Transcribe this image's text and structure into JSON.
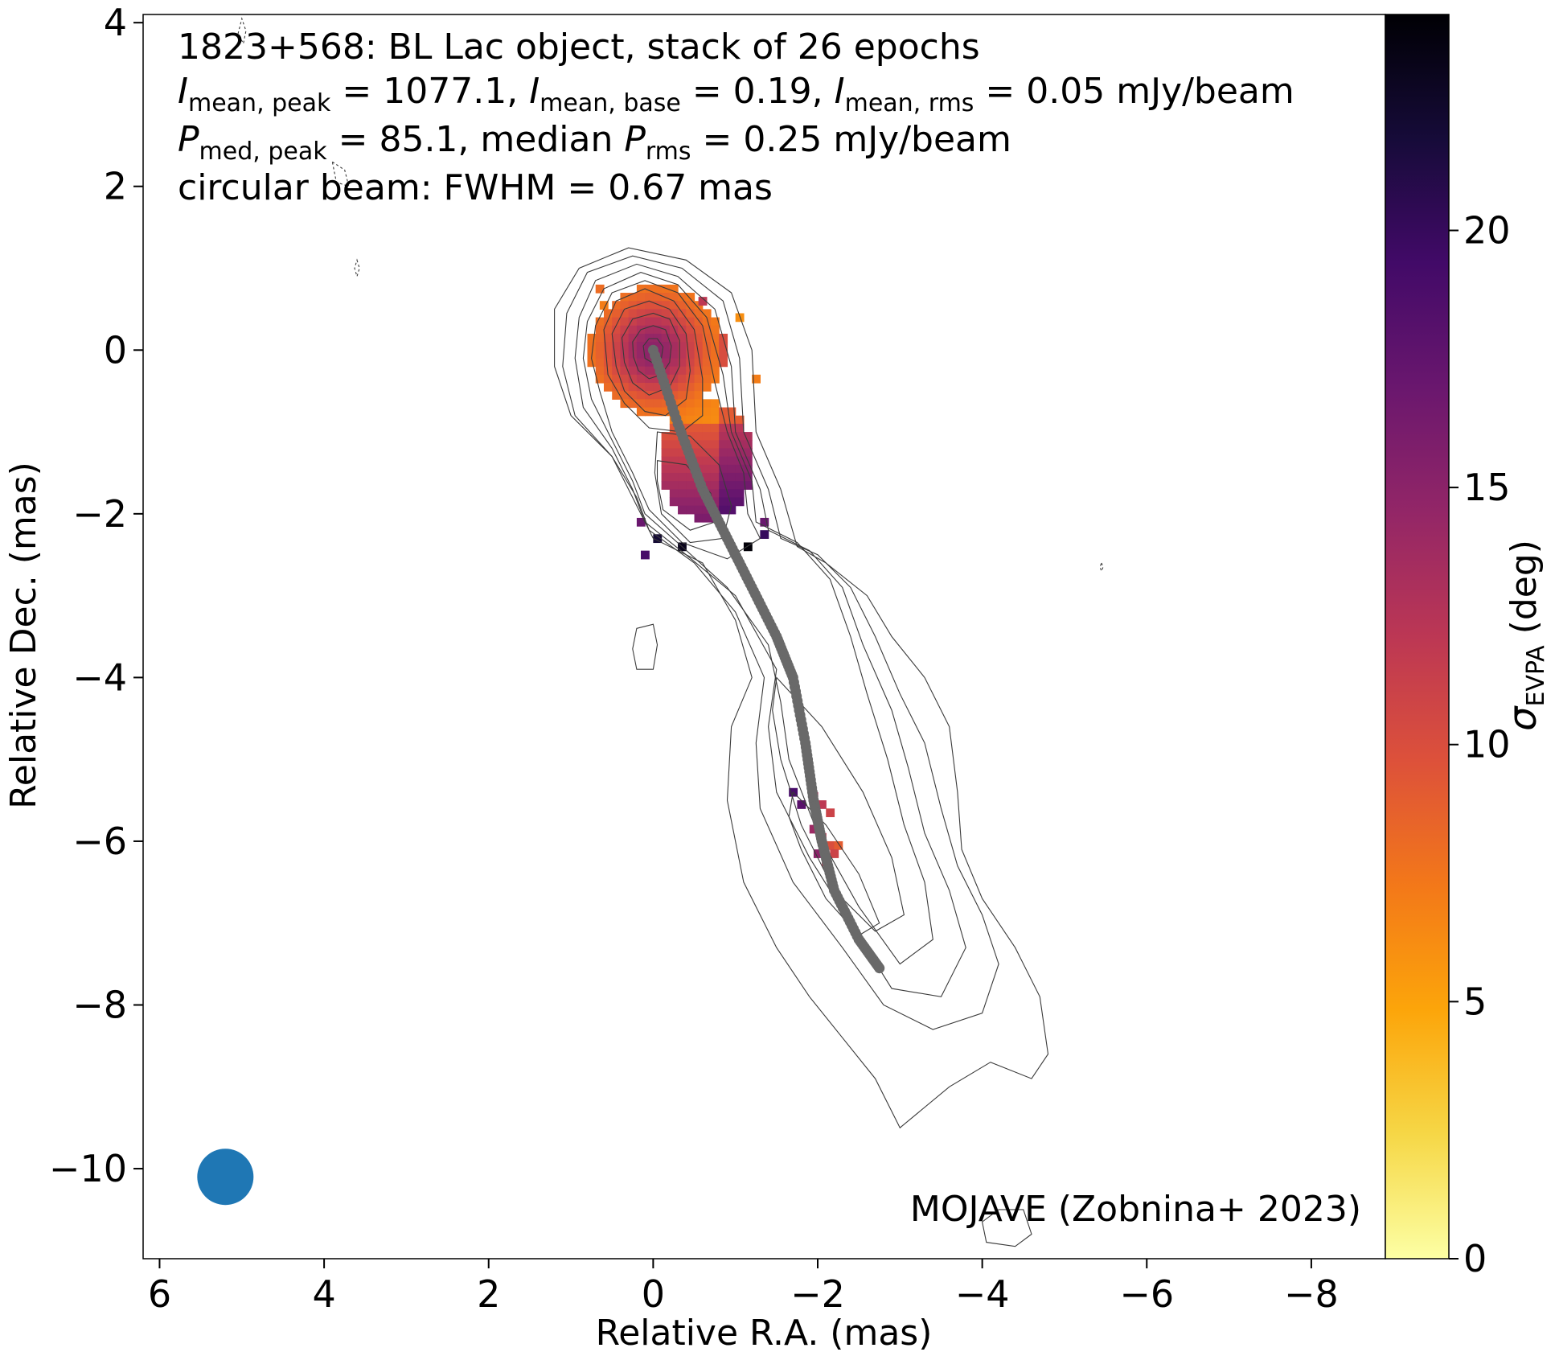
{
  "chart_data": {
    "type": "heatmap",
    "title_lines": {
      "line1": "1823+568: BL Lac object, stack of 26 epochs",
      "line2": {
        "I": "I",
        "sub_peak": "mean, peak",
        "peak_value": " = 1077.1, ",
        "sub_base": "mean, base",
        "base_value": " = 0.19, ",
        "sub_rms": "mean, rms",
        "rms_value": " = 0.05 mJy/beam"
      },
      "line3": {
        "P": "P",
        "sub_peak": "med, peak",
        "peak_value": " = 85.1, median ",
        "sub_rms": "rms",
        "rms_value": " = 0.25 mJy/beam"
      },
      "line4": "circular beam: FWHM = 0.67 mas"
    },
    "xlabel": "Relative R.A. (mas)",
    "ylabel": "Relative Dec. (mas)",
    "xlim": [
      6.2,
      -8.9
    ],
    "ylim": [
      -11.1,
      4.1
    ],
    "xticks": [
      6,
      4,
      2,
      0,
      -2,
      -4,
      -6,
      -8
    ],
    "yticks": [
      4,
      2,
      0,
      -2,
      -4,
      -6,
      -8,
      -10
    ],
    "xtick_labels": [
      "6",
      "4",
      "2",
      "0",
      "−2",
      "−4",
      "−6",
      "−8"
    ],
    "ytick_labels": [
      "4",
      "2",
      "0",
      "−2",
      "−4",
      "−6",
      "−8",
      "−10"
    ],
    "colorbar": {
      "label_symbol": "σ",
      "label_sub": "EVPA",
      "label_unit": " (deg)",
      "range": [
        0,
        24.2
      ],
      "ticks": [
        0,
        5,
        10,
        15,
        20
      ],
      "tick_labels": [
        "0",
        "5",
        "10",
        "15",
        "20"
      ],
      "colormap": "inferno_r"
    },
    "credit": "MOJAVE (Zobnina+ 2023)",
    "beam": {
      "center": [
        5.2,
        -10.1
      ],
      "fwhm": 0.67,
      "color": "#1f77b4"
    },
    "ridgeline": {
      "color": "#696969",
      "points": [
        [
          0,
          0
        ],
        [
          -0.3,
          -0.9
        ],
        [
          -0.6,
          -1.7
        ],
        [
          -0.9,
          -2.3
        ],
        [
          -1.2,
          -2.9
        ],
        [
          -1.5,
          -3.5
        ],
        [
          -1.7,
          -4.0
        ],
        [
          -1.85,
          -4.8
        ],
        [
          -1.95,
          -5.5
        ],
        [
          -2.05,
          -6.0
        ],
        [
          -2.2,
          -6.6
        ],
        [
          -2.5,
          -7.2
        ],
        [
          -2.75,
          -7.55
        ]
      ]
    },
    "contours": [
      {
        "points": [
          [
            1.2,
            0.5
          ],
          [
            0.9,
            1.0
          ],
          [
            0.3,
            1.25
          ],
          [
            -0.4,
            1.1
          ],
          [
            -0.95,
            0.7
          ],
          [
            -1.2,
            0.0
          ],
          [
            -1.25,
            -1.0
          ],
          [
            -1.55,
            -1.7
          ],
          [
            -1.75,
            -2.4
          ],
          [
            -2.1,
            -2.6
          ],
          [
            -2.6,
            -3.0
          ],
          [
            -2.9,
            -3.5
          ],
          [
            -3.3,
            -4.0
          ],
          [
            -3.6,
            -4.6
          ],
          [
            -3.7,
            -5.4
          ],
          [
            -3.75,
            -6.1
          ],
          [
            -4.0,
            -6.7
          ],
          [
            -4.4,
            -7.3
          ],
          [
            -4.7,
            -7.9
          ],
          [
            -4.8,
            -8.6
          ],
          [
            -4.6,
            -8.9
          ],
          [
            -4.1,
            -8.7
          ],
          [
            -3.6,
            -9.0
          ],
          [
            -3.0,
            -9.5
          ],
          [
            -2.7,
            -8.9
          ],
          [
            -2.3,
            -8.4
          ],
          [
            -1.9,
            -7.9
          ],
          [
            -1.5,
            -7.3
          ],
          [
            -1.1,
            -6.5
          ],
          [
            -0.9,
            -5.5
          ],
          [
            -0.95,
            -4.6
          ],
          [
            -1.2,
            -4.0
          ],
          [
            -1.0,
            -3.3
          ],
          [
            -0.6,
            -2.6
          ],
          [
            0.0,
            -2.3
          ],
          [
            0.2,
            -1.9
          ],
          [
            0.5,
            -1.3
          ],
          [
            1.0,
            -0.8
          ],
          [
            1.2,
            -0.2
          ]
        ]
      },
      {
        "points": [
          [
            1.05,
            0.45
          ],
          [
            0.8,
            0.95
          ],
          [
            0.25,
            1.15
          ],
          [
            -0.35,
            1.0
          ],
          [
            -0.85,
            0.6
          ],
          [
            -1.05,
            -0.1
          ],
          [
            -1.1,
            -1.0
          ],
          [
            -1.4,
            -1.7
          ],
          [
            -1.55,
            -2.3
          ],
          [
            -2.0,
            -2.5
          ],
          [
            -2.4,
            -2.9
          ],
          [
            -2.7,
            -3.5
          ],
          [
            -3.0,
            -4.2
          ],
          [
            -3.3,
            -4.8
          ],
          [
            -3.5,
            -5.6
          ],
          [
            -3.7,
            -6.3
          ],
          [
            -4.0,
            -6.9
          ],
          [
            -4.2,
            -7.5
          ],
          [
            -4.0,
            -8.1
          ],
          [
            -3.4,
            -8.3
          ],
          [
            -2.8,
            -8.0
          ],
          [
            -2.3,
            -7.3
          ],
          [
            -1.7,
            -6.5
          ],
          [
            -1.3,
            -5.6
          ],
          [
            -1.25,
            -4.8
          ],
          [
            -1.35,
            -4.0
          ],
          [
            -1.0,
            -3.2
          ],
          [
            -0.5,
            -2.6
          ],
          [
            0.05,
            -2.2
          ],
          [
            0.2,
            -1.8
          ],
          [
            0.5,
            -1.3
          ],
          [
            0.95,
            -0.8
          ],
          [
            1.1,
            -0.2
          ]
        ]
      },
      {
        "points": [
          [
            0.9,
            0.4
          ],
          [
            0.7,
            0.85
          ],
          [
            0.2,
            1.05
          ],
          [
            -0.3,
            0.9
          ],
          [
            -0.75,
            0.5
          ],
          [
            -0.95,
            -0.2
          ],
          [
            -1.0,
            -1.0
          ],
          [
            -1.3,
            -1.7
          ],
          [
            -1.4,
            -2.2
          ],
          [
            -1.9,
            -2.45
          ],
          [
            -2.3,
            -2.9
          ],
          [
            -2.55,
            -3.6
          ],
          [
            -2.9,
            -4.4
          ],
          [
            -3.1,
            -5.1
          ],
          [
            -3.3,
            -5.9
          ],
          [
            -3.6,
            -6.6
          ],
          [
            -3.8,
            -7.3
          ],
          [
            -3.5,
            -7.9
          ],
          [
            -2.9,
            -7.8
          ],
          [
            -2.4,
            -7.0
          ],
          [
            -1.9,
            -6.2
          ],
          [
            -1.5,
            -5.4
          ],
          [
            -1.4,
            -4.6
          ],
          [
            -1.5,
            -3.9
          ],
          [
            -1.0,
            -3.0
          ],
          [
            -0.4,
            -2.5
          ],
          [
            0.1,
            -2.1
          ],
          [
            0.25,
            -1.7
          ],
          [
            0.5,
            -1.2
          ],
          [
            0.85,
            -0.7
          ],
          [
            0.95,
            -0.1
          ]
        ]
      },
      {
        "points": [
          [
            0.8,
            0.35
          ],
          [
            0.6,
            0.75
          ],
          [
            0.15,
            0.95
          ],
          [
            -0.3,
            0.8
          ],
          [
            -0.65,
            0.4
          ],
          [
            -0.85,
            -0.3
          ],
          [
            -0.95,
            -1.0
          ],
          [
            -1.2,
            -1.6
          ],
          [
            -1.25,
            -2.1
          ],
          [
            -1.75,
            -2.35
          ],
          [
            -2.15,
            -2.8
          ],
          [
            -2.4,
            -3.5
          ],
          [
            -2.6,
            -4.2
          ],
          [
            -2.85,
            -5.0
          ],
          [
            -3.05,
            -5.8
          ],
          [
            -3.3,
            -6.5
          ],
          [
            -3.4,
            -7.2
          ],
          [
            -3.0,
            -7.5
          ],
          [
            -2.5,
            -6.8
          ],
          [
            -2.0,
            -5.9
          ],
          [
            -1.65,
            -5.0
          ],
          [
            -1.55,
            -4.3
          ],
          [
            -1.4,
            -3.6
          ],
          [
            -0.9,
            -2.9
          ],
          [
            -0.35,
            -2.4
          ],
          [
            0.1,
            -2.0
          ],
          [
            0.25,
            -1.6
          ],
          [
            0.5,
            -1.1
          ],
          [
            0.75,
            -0.6
          ],
          [
            0.85,
            -0.1
          ]
        ]
      },
      {
        "points": [
          [
            0.7,
            0.3
          ],
          [
            0.5,
            0.7
          ],
          [
            0.1,
            0.85
          ],
          [
            -0.3,
            0.7
          ],
          [
            -0.6,
            0.3
          ],
          [
            -0.75,
            -0.4
          ],
          [
            -0.9,
            -1.0
          ],
          [
            -1.1,
            -1.5
          ],
          [
            -1.15,
            -2.0
          ],
          [
            -1.3,
            -2.3
          ],
          [
            -0.9,
            -2.55
          ],
          [
            -0.35,
            -2.35
          ],
          [
            0.05,
            -1.95
          ],
          [
            0.25,
            -1.5
          ],
          [
            0.5,
            -1.0
          ],
          [
            0.65,
            -0.5
          ],
          [
            0.75,
            -0.1
          ]
        ]
      },
      {
        "points": [
          [
            -1.5,
            -4.0
          ],
          [
            -2.05,
            -4.6
          ],
          [
            -2.55,
            -5.4
          ],
          [
            -2.9,
            -6.2
          ],
          [
            -3.05,
            -6.9
          ],
          [
            -2.7,
            -7.1
          ],
          [
            -2.2,
            -6.6
          ],
          [
            -1.8,
            -5.8
          ],
          [
            -1.55,
            -5.0
          ],
          [
            -1.45,
            -4.4
          ]
        ]
      },
      {
        "points": [
          [
            -1.7,
            -5.4
          ],
          [
            -2.1,
            -5.8
          ],
          [
            -2.5,
            -6.4
          ],
          [
            -2.75,
            -7.0
          ],
          [
            -2.5,
            -7.15
          ],
          [
            -2.1,
            -6.7
          ],
          [
            -1.8,
            -6.1
          ],
          [
            -1.65,
            -5.7
          ]
        ]
      },
      {
        "points": [
          [
            0.6,
            0.25
          ],
          [
            0.45,
            0.6
          ],
          [
            0.1,
            0.75
          ],
          [
            -0.25,
            0.6
          ],
          [
            -0.5,
            0.25
          ],
          [
            -0.6,
            -0.35
          ],
          [
            -0.6,
            -0.8
          ],
          [
            -0.35,
            -1.0
          ],
          [
            0.05,
            -0.95
          ],
          [
            0.35,
            -0.65
          ],
          [
            0.55,
            -0.3
          ]
        ]
      },
      {
        "points": [
          [
            0.5,
            0.2
          ],
          [
            0.35,
            0.5
          ],
          [
            0.05,
            0.6
          ],
          [
            -0.2,
            0.5
          ],
          [
            -0.4,
            0.2
          ],
          [
            -0.45,
            -0.25
          ],
          [
            -0.4,
            -0.6
          ],
          [
            -0.15,
            -0.8
          ],
          [
            0.1,
            -0.75
          ],
          [
            0.35,
            -0.5
          ],
          [
            0.45,
            -0.2
          ]
        ]
      },
      {
        "points": [
          [
            0.38,
            0.15
          ],
          [
            0.25,
            0.38
          ],
          [
            0.0,
            0.45
          ],
          [
            -0.2,
            0.38
          ],
          [
            -0.32,
            0.12
          ],
          [
            -0.32,
            -0.2
          ],
          [
            -0.2,
            -0.45
          ],
          [
            0.05,
            -0.55
          ],
          [
            0.25,
            -0.4
          ],
          [
            0.35,
            -0.15
          ]
        ]
      },
      {
        "points": [
          [
            0.25,
            0.1
          ],
          [
            0.15,
            0.25
          ],
          [
            0.0,
            0.3
          ],
          [
            -0.15,
            0.25
          ],
          [
            -0.22,
            0.05
          ],
          [
            -0.2,
            -0.15
          ],
          [
            -0.1,
            -0.3
          ],
          [
            0.05,
            -0.35
          ],
          [
            0.18,
            -0.25
          ],
          [
            0.24,
            -0.08
          ]
        ]
      },
      {
        "points": [
          [
            0.12,
            0.05
          ],
          [
            0.05,
            0.14
          ],
          [
            -0.05,
            0.14
          ],
          [
            -0.12,
            0.04
          ],
          [
            -0.1,
            -0.1
          ],
          [
            0.0,
            -0.16
          ],
          [
            0.1,
            -0.1
          ]
        ]
      },
      {
        "points": [
          [
            -0.05,
            -1.0
          ],
          [
            -0.45,
            -1.05
          ],
          [
            -0.8,
            -1.4
          ],
          [
            -0.95,
            -1.9
          ],
          [
            -0.85,
            -2.3
          ],
          [
            -0.45,
            -2.35
          ],
          [
            -0.1,
            -2.0
          ],
          [
            -0.02,
            -1.5
          ]
        ]
      },
      {
        "points": [
          [
            -0.05,
            -1.35
          ],
          [
            -0.4,
            -1.4
          ],
          [
            -0.7,
            -1.75
          ],
          [
            -0.75,
            -2.1
          ],
          [
            -0.45,
            -2.2
          ],
          [
            -0.12,
            -1.95
          ],
          [
            -0.05,
            -1.6
          ]
        ]
      },
      {
        "points": [
          [
            0.2,
            -3.4
          ],
          [
            0.0,
            -3.35
          ],
          [
            -0.05,
            -3.6
          ],
          [
            0.0,
            -3.9
          ],
          [
            0.2,
            -3.9
          ],
          [
            0.25,
            -3.65
          ]
        ]
      },
      {
        "points": [
          [
            -4.5,
            -10.5
          ],
          [
            -4.2,
            -10.5
          ],
          [
            -4.0,
            -10.65
          ],
          [
            -4.05,
            -10.9
          ],
          [
            -4.4,
            -10.95
          ],
          [
            -4.6,
            -10.8
          ]
        ]
      },
      {
        "points": [
          [
            4.98,
            3.75
          ],
          [
            4.95,
            3.9
          ],
          [
            5.0,
            4.05
          ],
          [
            5.05,
            3.85
          ]
        ]
      },
      {
        "points": [
          [
            3.9,
            2.3
          ],
          [
            3.75,
            2.2
          ],
          [
            3.7,
            2.0
          ],
          [
            3.85,
            2.05
          ]
        ]
      },
      {
        "points": [
          [
            3.6,
            1.1
          ],
          [
            3.57,
            1.0
          ],
          [
            3.6,
            0.9
          ],
          [
            3.63,
            1.0
          ]
        ]
      },
      {
        "points": [
          [
            -5.45,
            -2.6
          ],
          [
            -5.47,
            -2.65
          ],
          [
            -5.45,
            -2.7
          ],
          [
            -5.43,
            -2.65
          ]
        ]
      }
    ],
    "evpa_pixels": [
      {
        "ra_min": -1.25,
        "ra_max": 0.9,
        "dec_min": -1.6,
        "dec_max": 0.8,
        "values_note": "core"
      }
    ]
  }
}
